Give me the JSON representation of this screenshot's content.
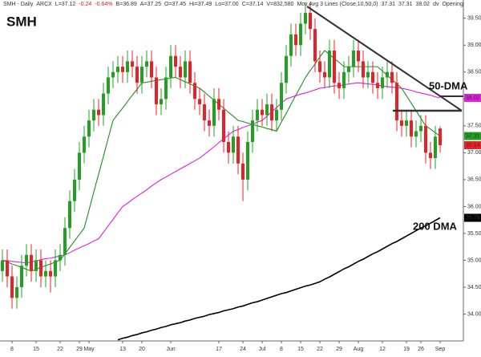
{
  "chart_data": {
    "type": "candlestick",
    "symbol": "SMH",
    "header": [
      "SMH - Daily",
      "ARCX",
      "L=37.12",
      "-0.24",
      "-0.64%",
      "B=36.89",
      "A=37.25",
      "O=37.45",
      "Hi=37.49",
      "Lo=37.00",
      "C=37.14",
      "V=832,580",
      "Mov Avg 3 Lines (Close,10,50,0)",
      "37.31",
      "37.31",
      "38.02",
      "dv",
      "Opening"
    ],
    "annotations": [
      "50-DMA",
      "200 DMA"
    ],
    "categories": [
      null,
      null,
      "8",
      null,
      null,
      null,
      null,
      "15",
      null,
      null,
      null,
      null,
      "22",
      null,
      null,
      null,
      "29",
      null,
      "May",
      null,
      null,
      null,
      null,
      null,
      null,
      "13",
      null,
      null,
      null,
      "20",
      null,
      null,
      null,
      null,
      null,
      "Jun",
      null,
      null,
      null,
      null,
      null,
      null,
      null,
      null,
      null,
      "17",
      null,
      null,
      null,
      null,
      "24",
      null,
      null,
      null,
      "Jul",
      null,
      null,
      null,
      "8",
      null,
      null,
      null,
      "15",
      null,
      null,
      null,
      "22",
      null,
      null,
      null,
      "29",
      null,
      null,
      null,
      "Aug",
      null,
      null,
      null,
      null,
      "12",
      null,
      null,
      null,
      null,
      "19",
      null,
      null,
      "26",
      null,
      null,
      null,
      "Sep"
    ],
    "open": [
      34.8,
      35.0,
      34.7,
      34.3,
      34.5,
      34.9,
      35.1,
      34.8,
      35.0,
      34.7,
      34.8,
      34.7,
      35.0,
      35.1,
      35.6,
      36.1,
      36.5,
      37.0,
      37.3,
      37.6,
      37.8,
      37.7,
      38.1,
      38.4,
      38.5,
      38.6,
      38.5,
      38.7,
      38.6,
      38.3,
      38.6,
      38.7,
      38.4,
      37.9,
      38.0,
      38.4,
      38.8,
      38.6,
      38.4,
      38.7,
      38.3,
      38.0,
      37.9,
      37.6,
      37.5,
      38.0,
      37.8,
      37.2,
      37.0,
      37.3,
      36.8,
      36.5,
      37.2,
      37.6,
      37.8,
      37.7,
      37.9,
      37.6,
      37.8,
      38.3,
      38.8,
      39.2,
      39.0,
      39.4,
      39.6,
      39.3,
      38.7,
      38.5,
      38.4,
      38.9,
      38.3,
      38.2,
      38.5,
      38.6,
      38.9,
      38.7,
      38.4,
      38.5,
      38.3,
      38.2,
      38.4,
      38.5,
      38.3,
      37.6,
      37.5,
      37.6,
      37.3,
      37.4,
      37.5,
      37.0,
      36.9,
      37.45
    ],
    "high": [
      35.2,
      35.2,
      34.9,
      34.7,
      35.1,
      35.3,
      35.3,
      35.2,
      35.2,
      35.0,
      35.0,
      35.2,
      35.3,
      35.8,
      36.3,
      36.7,
      37.2,
      37.5,
      37.8,
      38.0,
      38.0,
      38.3,
      38.6,
      38.7,
      38.8,
      38.8,
      38.9,
      38.9,
      38.8,
      38.8,
      38.9,
      38.9,
      38.6,
      38.2,
      38.6,
      39.0,
      39.0,
      38.8,
      38.9,
      38.9,
      38.5,
      38.2,
      38.1,
      37.8,
      38.2,
      38.2,
      38.0,
      37.4,
      37.5,
      37.5,
      37.0,
      37.4,
      37.8,
      38.0,
      38.0,
      38.1,
      38.1,
      38.0,
      38.5,
      39.0,
      39.4,
      39.4,
      39.6,
      39.8,
      39.8,
      39.5,
      38.9,
      38.7,
      39.1,
      39.1,
      38.5,
      38.7,
      38.8,
      39.1,
      39.1,
      38.9,
      38.7,
      38.7,
      38.5,
      38.6,
      38.7,
      38.7,
      38.5,
      37.8,
      37.8,
      37.8,
      37.6,
      37.7,
      37.7,
      37.2,
      37.5,
      37.49
    ],
    "low": [
      34.6,
      34.5,
      34.1,
      34.1,
      34.3,
      34.7,
      34.6,
      34.6,
      34.5,
      34.5,
      34.4,
      34.5,
      34.8,
      34.9,
      35.4,
      35.9,
      36.3,
      36.8,
      37.1,
      37.4,
      37.5,
      37.5,
      37.9,
      38.2,
      38.3,
      38.3,
      38.3,
      38.4,
      38.1,
      38.1,
      38.4,
      38.2,
      37.7,
      37.7,
      37.8,
      38.2,
      38.4,
      38.2,
      38.2,
      38.1,
      37.8,
      37.7,
      37.4,
      37.3,
      37.3,
      37.6,
      37.0,
      36.8,
      36.8,
      36.6,
      36.1,
      36.3,
      37.0,
      37.4,
      37.5,
      37.5,
      37.4,
      37.4,
      37.6,
      38.1,
      38.6,
      38.8,
      38.8,
      39.2,
      39.1,
      38.5,
      38.3,
      38.2,
      38.2,
      38.1,
      38.0,
      38.0,
      38.3,
      38.4,
      38.5,
      38.2,
      38.2,
      38.1,
      38.0,
      38.0,
      38.2,
      38.1,
      37.4,
      37.3,
      37.3,
      37.1,
      37.1,
      37.2,
      36.8,
      36.7,
      36.7,
      37.0
    ],
    "close": [
      35.0,
      34.7,
      34.3,
      34.5,
      34.9,
      35.1,
      34.8,
      35.0,
      34.7,
      34.8,
      34.7,
      35.0,
      35.1,
      35.6,
      36.1,
      36.5,
      37.0,
      37.3,
      37.6,
      37.8,
      37.7,
      38.1,
      38.4,
      38.5,
      38.6,
      38.5,
      38.7,
      38.6,
      38.3,
      38.6,
      38.7,
      38.4,
      37.9,
      38.0,
      38.4,
      38.8,
      38.6,
      38.4,
      38.7,
      38.3,
      38.0,
      37.9,
      37.6,
      37.5,
      38.0,
      37.8,
      37.2,
      37.0,
      37.3,
      36.8,
      36.5,
      37.2,
      37.6,
      37.8,
      37.7,
      37.9,
      37.6,
      37.8,
      38.3,
      38.8,
      39.2,
      39.0,
      39.4,
      39.6,
      39.3,
      38.7,
      38.5,
      38.4,
      38.9,
      38.3,
      38.2,
      38.5,
      38.6,
      38.9,
      38.7,
      38.4,
      38.5,
      38.3,
      38.2,
      38.4,
      38.5,
      38.3,
      37.6,
      37.5,
      37.6,
      37.3,
      37.4,
      37.5,
      37.0,
      36.9,
      37.3,
      37.14
    ],
    "up_color": "#22a022",
    "down_color": "#e8202a",
    "moving_averages": [
      {
        "color": "#1f8f1f",
        "values": [
          35.0,
          34.97,
          34.93,
          34.9,
          34.87,
          34.83,
          34.8,
          34.83,
          34.87,
          34.9,
          34.93,
          34.97,
          35.0,
          35.12,
          35.24,
          35.36,
          35.48,
          35.6,
          35.93,
          36.27,
          36.6,
          36.93,
          37.27,
          37.6,
          37.72,
          37.83,
          37.95,
          38.07,
          38.18,
          38.3,
          38.31,
          38.33,
          38.34,
          38.36,
          38.37,
          38.39,
          38.4,
          38.36,
          38.32,
          38.28,
          38.24,
          38.2,
          38.13,
          38.05,
          37.98,
          37.9,
          37.83,
          37.75,
          37.68,
          37.6,
          37.58,
          37.55,
          37.53,
          37.5,
          37.48,
          37.45,
          37.43,
          37.4,
          37.57,
          37.73,
          37.9,
          38.07,
          38.23,
          38.4,
          38.53,
          38.65,
          38.78,
          38.9,
          38.83,
          38.75,
          38.68,
          38.6,
          38.6,
          38.6,
          38.6,
          38.6,
          38.6,
          38.6,
          38.6,
          38.52,
          38.44,
          38.36,
          38.28,
          38.2,
          38.06,
          37.92,
          37.78,
          37.64,
          37.5,
          37.44,
          37.37,
          37.31
        ]
      },
      {
        "color": "#e020e0",
        "values": [
          35.0,
          34.99,
          34.98,
          34.97,
          34.96,
          34.95,
          34.97,
          34.99,
          35.01,
          35.03,
          35.04,
          35.06,
          35.08,
          35.1,
          35.14,
          35.19,
          35.23,
          35.27,
          35.31,
          35.36,
          35.4,
          35.52,
          35.64,
          35.76,
          35.88,
          36.0,
          36.06,
          36.13,
          36.19,
          36.25,
          36.31,
          36.38,
          36.44,
          36.5,
          36.55,
          36.6,
          36.65,
          36.7,
          36.75,
          36.8,
          36.85,
          36.9,
          36.97,
          37.04,
          37.11,
          37.19,
          37.26,
          37.33,
          37.4,
          37.43,
          37.47,
          37.5,
          37.53,
          37.57,
          37.6,
          37.68,
          37.76,
          37.84,
          37.92,
          38.0,
          38.03,
          38.06,
          38.09,
          38.11,
          38.14,
          38.17,
          38.2,
          38.21,
          38.23,
          38.24,
          38.25,
          38.26,
          38.28,
          38.29,
          38.3,
          38.29,
          38.28,
          38.27,
          38.26,
          38.24,
          38.23,
          38.22,
          38.21,
          38.2,
          38.18,
          38.16,
          38.13,
          38.11,
          38.09,
          38.07,
          38.04,
          38.02
        ]
      },
      {
        "color": "#000000",
        "values": [
          null,
          null,
          null,
          null,
          null,
          null,
          null,
          null,
          null,
          null,
          null,
          null,
          null,
          null,
          null,
          null,
          null,
          null,
          null,
          null,
          null,
          null,
          null,
          null,
          33.52,
          33.55,
          33.57,
          33.6,
          33.62,
          33.65,
          33.67,
          33.7,
          33.72,
          33.75,
          33.77,
          33.8,
          33.82,
          33.84,
          33.87,
          33.89,
          33.92,
          33.94,
          33.96,
          33.99,
          34.01,
          34.03,
          34.06,
          34.08,
          34.1,
          34.13,
          34.15,
          34.18,
          34.21,
          34.23,
          34.26,
          34.29,
          34.32,
          34.35,
          34.38,
          34.4,
          34.43,
          34.46,
          34.49,
          34.52,
          34.54,
          34.57,
          34.6,
          34.65,
          34.69,
          34.74,
          34.79,
          34.84,
          34.88,
          34.93,
          34.98,
          35.02,
          35.07,
          35.12,
          35.16,
          35.21,
          35.26,
          35.31,
          35.35,
          35.4,
          35.45,
          35.5,
          35.55,
          35.6,
          35.64,
          35.69,
          35.74,
          35.79
        ]
      }
    ],
    "price_tags": [
      {
        "value": 38.02,
        "color": "#e020e0"
      },
      {
        "value": 37.31,
        "color": "#22a022"
      },
      {
        "value": 37.14,
        "color": "#e8202a"
      },
      {
        "value": 35.79,
        "color": "#000000"
      }
    ],
    "ylim": [
      33.5,
      39.84
    ],
    "yticks": [
      {
        "value": 34,
        "label": "34.00"
      },
      {
        "value": 34.5,
        "label": "34.50"
      },
      {
        "value": 35,
        "label": "35.00"
      },
      {
        "value": 35.5,
        "label": "35.50"
      },
      {
        "value": 36,
        "label": "36.00"
      },
      {
        "value": 36.5,
        "label": "36.50"
      },
      {
        "value": 37,
        "label": "37.00"
      },
      {
        "value": 37.5,
        "label": "37.50"
      },
      {
        "value": 38,
        "label": "38.00"
      },
      {
        "value": 38.5,
        "label": "38.50"
      },
      {
        "value": 39,
        "label": "39.00"
      },
      {
        "value": 39.5,
        "label": "39.50"
      }
    ]
  }
}
